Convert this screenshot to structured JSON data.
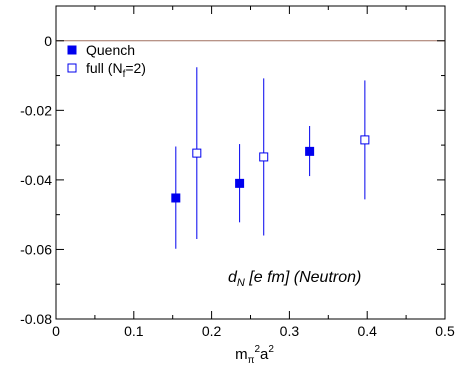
{
  "chart_data": {
    "type": "scatter",
    "xlim": [
      0,
      0.5
    ],
    "ylim": [
      -0.08,
      0.01
    ],
    "x_ticks": [
      "0",
      "0.1",
      "0.2",
      "0.3",
      "0.4",
      "0.5"
    ],
    "y_ticks": [
      "0",
      "-0.02",
      "-0.04",
      "-0.06",
      "-0.08"
    ],
    "x_tick_values": [
      0,
      0.1,
      0.2,
      0.3,
      0.4,
      0.5
    ],
    "y_tick_values": [
      0,
      -0.02,
      -0.04,
      -0.06,
      -0.08
    ],
    "xlabel": {
      "base": "m",
      "sub1": "π",
      "sup1": "2",
      "mid": "a",
      "sup2": "2"
    },
    "ylabel": "",
    "grid": false,
    "reference_line_y": 0,
    "legend_position": "top-left",
    "annotation": {
      "prefix": "d",
      "sub": "N",
      "suffix": " [e fm] (Neutron)"
    },
    "series": [
      {
        "name": "Quench",
        "marker": "filled-square",
        "color": "#0000ee",
        "points": [
          {
            "x": 0.154,
            "y": -0.0452,
            "err_low": -0.0598,
            "err_high": -0.0304
          },
          {
            "x": 0.236,
            "y": -0.041,
            "err_low": -0.0522,
            "err_high": -0.0297
          },
          {
            "x": 0.326,
            "y": -0.0318,
            "err_low": -0.0389,
            "err_high": -0.0245
          }
        ]
      },
      {
        "name": "full (N_f=2)",
        "legend": {
          "text": "full (N",
          "sub": "f",
          "tail": "=2)"
        },
        "marker": "open-square",
        "color": "#0000ee",
        "points": [
          {
            "x": 0.181,
            "y": -0.0323,
            "err_low": -0.057,
            "err_high": -0.0076
          },
          {
            "x": 0.267,
            "y": -0.0334,
            "err_low": -0.056,
            "err_high": -0.0108
          },
          {
            "x": 0.397,
            "y": -0.0285,
            "err_low": -0.0456,
            "err_high": -0.0114
          }
        ]
      }
    ]
  }
}
